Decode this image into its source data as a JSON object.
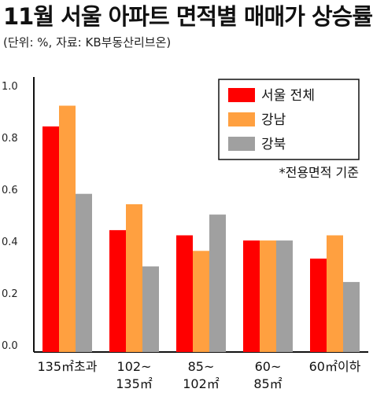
{
  "chart_data": {
    "type": "bar",
    "title": "11월 서울 아파트 면적별 매매가 상승률",
    "subtitle": "(단위: %, 자료: KB부동산리브온)",
    "note": "*전용면적 기준",
    "categories": [
      [
        "135㎡초과"
      ],
      [
        "102~",
        "135㎡"
      ],
      [
        "85~",
        "102㎡"
      ],
      [
        "60~",
        "85㎡"
      ],
      [
        "60㎡이하"
      ]
    ],
    "series": [
      {
        "name": "서울 전체",
        "color": "#ff0000",
        "values": [
          0.87,
          0.47,
          0.45,
          0.43,
          0.36
        ]
      },
      {
        "name": "강남",
        "color": "#ffa040",
        "values": [
          0.95,
          0.57,
          0.39,
          0.43,
          0.45
        ]
      },
      {
        "name": "강북",
        "color": "#a0a0a0",
        "values": [
          0.61,
          0.33,
          0.53,
          0.43,
          0.27
        ]
      }
    ],
    "yticks": [
      "0.0",
      "0.2",
      "0.4",
      "0.6",
      "0.8",
      "1.0"
    ],
    "ylim": [
      0,
      1.0
    ],
    "grid": false,
    "legend": "top-right"
  }
}
